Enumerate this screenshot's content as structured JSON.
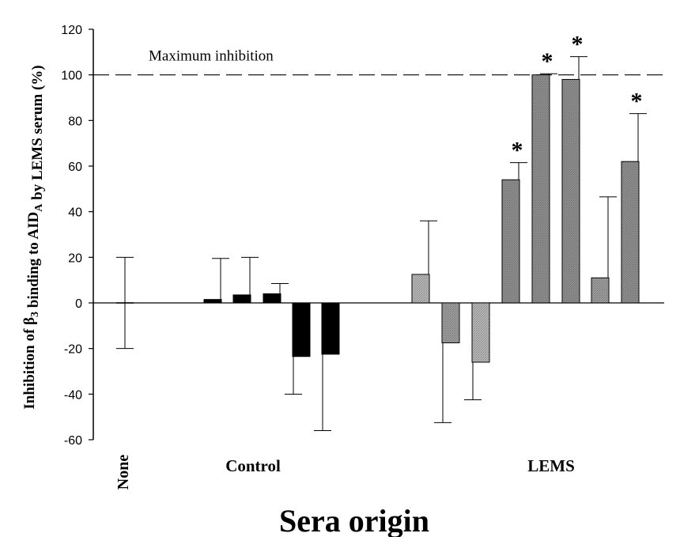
{
  "chart_data": {
    "type": "bar",
    "ylabel_parts": {
      "pre": "Inhibition of β",
      "sub1": "3",
      "mid": " binding to AID",
      "sub2": "A",
      "post": " by LEMS serum (%)"
    },
    "xlabel": "Sera origin",
    "ylim": [
      -60,
      120
    ],
    "yticks": [
      -60,
      -40,
      -20,
      0,
      20,
      40,
      60,
      80,
      100,
      120
    ],
    "reference_line": {
      "value": 100,
      "label": "Maximum inhibition"
    },
    "groups": [
      "None",
      "Control",
      "LEMS"
    ],
    "bars": [
      {
        "group": "None",
        "value": 0,
        "error": 20,
        "significant": false,
        "color": "#ffffff"
      },
      {
        "group": "Control",
        "value": 1.5,
        "error": 18,
        "significant": false,
        "color": "#000000"
      },
      {
        "group": "Control",
        "value": 3.5,
        "error": 16.5,
        "significant": false,
        "color": "#000000"
      },
      {
        "group": "Control",
        "value": 4,
        "error": 4.5,
        "significant": false,
        "color": "#000000"
      },
      {
        "group": "Control",
        "value": -23.5,
        "error": 16.5,
        "significant": false,
        "color": "#000000"
      },
      {
        "group": "Control",
        "value": -22.5,
        "error": 33.5,
        "significant": false,
        "color": "#000000"
      },
      {
        "group": "LEMS",
        "value": 12.5,
        "error": 23.5,
        "significant": false,
        "color": "#b4b4b4"
      },
      {
        "group": "LEMS",
        "value": -17.5,
        "error": 35,
        "significant": false,
        "color": "#9a9a9a"
      },
      {
        "group": "LEMS",
        "value": -26,
        "error": 16.5,
        "significant": false,
        "color": "#b4b4b4"
      },
      {
        "group": "LEMS",
        "value": 54,
        "error": 7.5,
        "significant": true,
        "color": "#8c8c8c"
      },
      {
        "group": "LEMS",
        "value": 100,
        "error": 0.5,
        "significant": true,
        "color": "#8c8c8c"
      },
      {
        "group": "LEMS",
        "value": 98,
        "error": 10,
        "significant": true,
        "color": "#8c8c8c"
      },
      {
        "group": "LEMS",
        "value": 11,
        "error": 35.5,
        "significant": false,
        "color": "#9a9a9a"
      },
      {
        "group": "LEMS",
        "value": 62,
        "error": 21,
        "significant": true,
        "color": "#8c8c8c"
      }
    ],
    "significance_marker": "*",
    "grid": false,
    "legend": "none"
  }
}
